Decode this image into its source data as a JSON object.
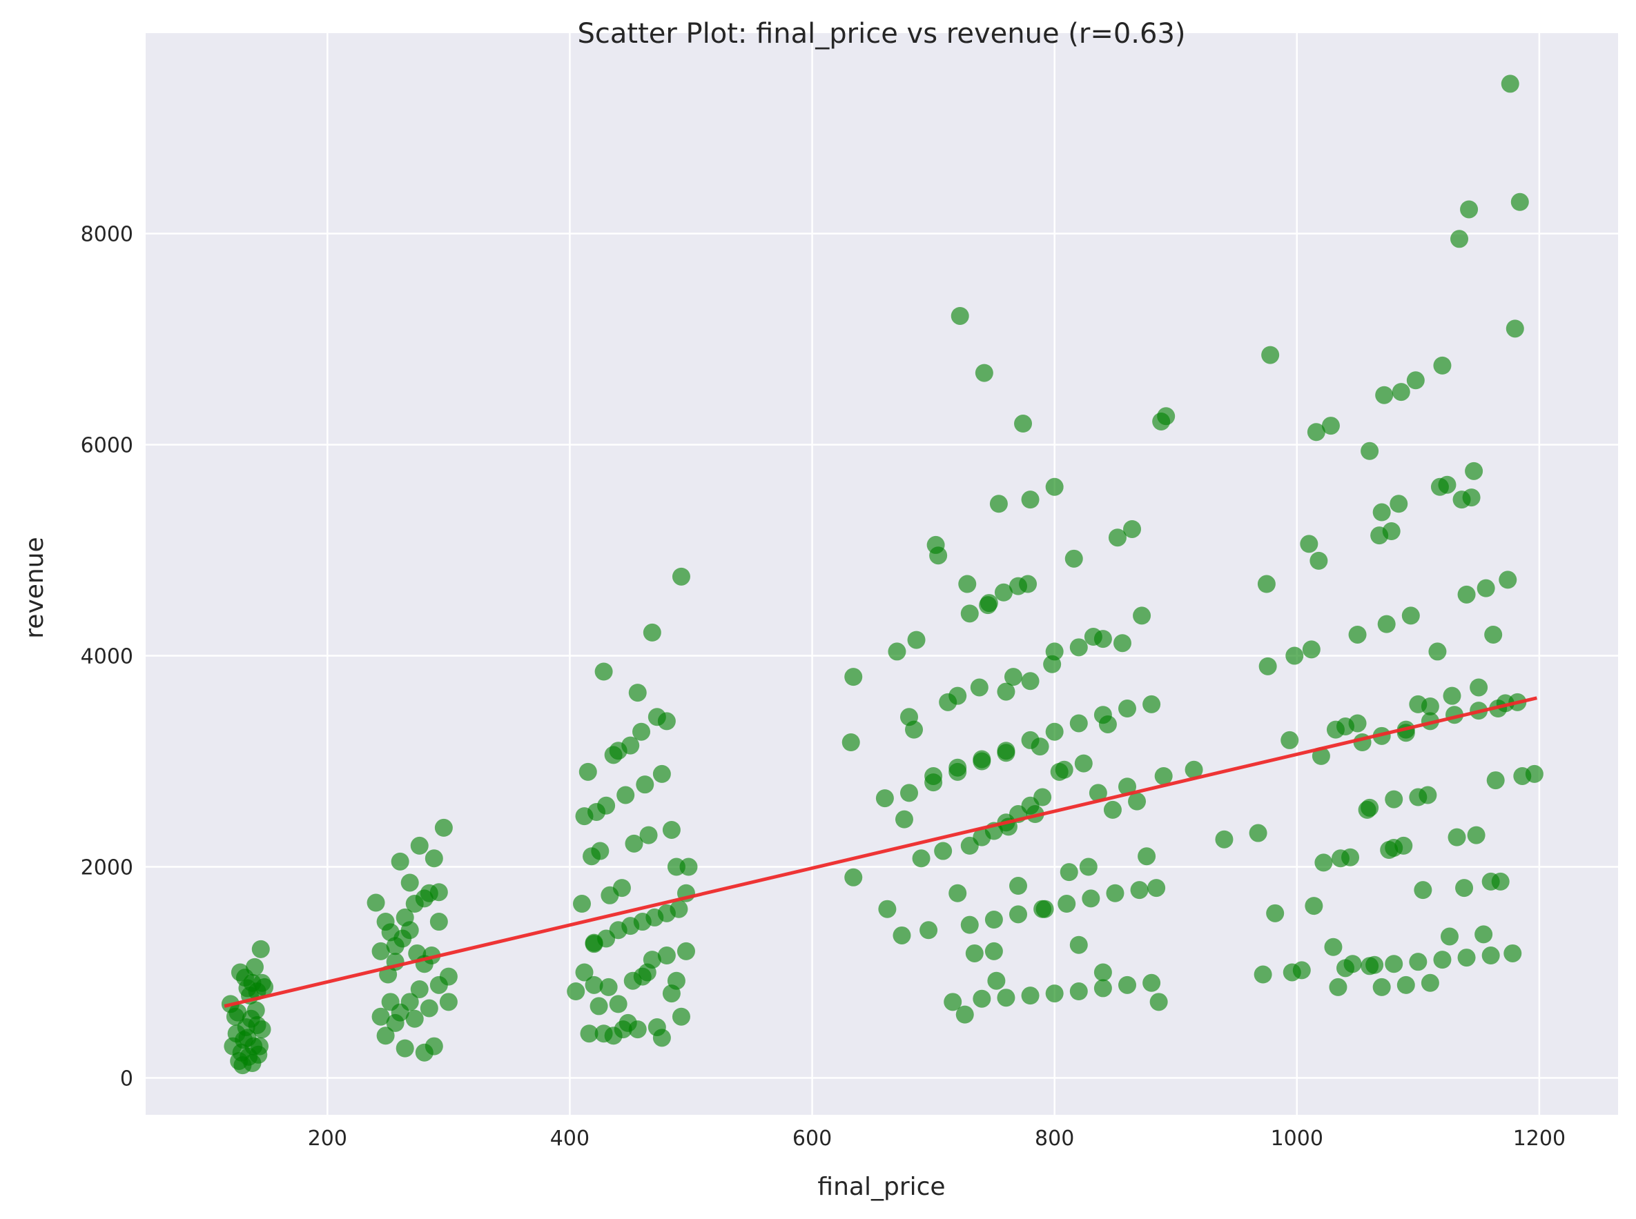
{
  "chart_data": {
    "type": "scatter",
    "title": "Scatter Plot: final_price vs revenue (r=0.63)",
    "xlabel": "final_price",
    "ylabel": "revenue",
    "xlim": [
      50,
      1265
    ],
    "ylim": [
      -350,
      9900
    ],
    "xticks": [
      200,
      400,
      600,
      800,
      1000,
      1200
    ],
    "yticks": [
      0,
      2000,
      4000,
      6000,
      8000
    ],
    "grid": true,
    "point_color": "#008000",
    "trend_color": "#ee2a2a",
    "background_color": "#eaeaf2",
    "trend_line": {
      "x": [
        115,
        1198
      ],
      "y": [
        680,
        3600
      ]
    },
    "points": [
      [
        120,
        700
      ],
      [
        124,
        580
      ],
      [
        128,
        1000
      ],
      [
        132,
        950
      ],
      [
        134,
        850
      ],
      [
        136,
        780
      ],
      [
        138,
        900
      ],
      [
        140,
        1050
      ],
      [
        142,
        820
      ],
      [
        145,
        1220
      ],
      [
        146,
        900
      ],
      [
        148,
        860
      ],
      [
        122,
        300
      ],
      [
        125,
        420
      ],
      [
        127,
        160
      ],
      [
        129,
        240
      ],
      [
        131,
        360
      ],
      [
        133,
        480
      ],
      [
        135,
        200
      ],
      [
        137,
        560
      ],
      [
        139,
        300
      ],
      [
        141,
        640
      ],
      [
        143,
        220
      ],
      [
        146,
        460
      ],
      [
        126,
        620
      ],
      [
        130,
        120
      ],
      [
        134,
        380
      ],
      [
        138,
        140
      ],
      [
        142,
        500
      ],
      [
        144,
        300
      ],
      [
        240,
        1660
      ],
      [
        244,
        1200
      ],
      [
        248,
        1480
      ],
      [
        252,
        1380
      ],
      [
        256,
        1250
      ],
      [
        260,
        2050
      ],
      [
        264,
        1520
      ],
      [
        268,
        1850
      ],
      [
        272,
        1650
      ],
      [
        276,
        2200
      ],
      [
        280,
        1700
      ],
      [
        284,
        1750
      ],
      [
        288,
        2080
      ],
      [
        292,
        1760
      ],
      [
        296,
        2370
      ],
      [
        300,
        960
      ],
      [
        244,
        580
      ],
      [
        248,
        400
      ],
      [
        252,
        720
      ],
      [
        256,
        520
      ],
      [
        260,
        620
      ],
      [
        264,
        280
      ],
      [
        268,
        720
      ],
      [
        272,
        560
      ],
      [
        276,
        840
      ],
      [
        280,
        240
      ],
      [
        284,
        660
      ],
      [
        288,
        300
      ],
      [
        292,
        880
      ],
      [
        300,
        720
      ],
      [
        250,
        980
      ],
      [
        256,
        1100
      ],
      [
        262,
        1320
      ],
      [
        268,
        1400
      ],
      [
        274,
        1180
      ],
      [
        280,
        1080
      ],
      [
        286,
        1160
      ],
      [
        292,
        1480
      ],
      [
        405,
        820
      ],
      [
        410,
        1650
      ],
      [
        412,
        2480
      ],
      [
        415,
        2900
      ],
      [
        418,
        2100
      ],
      [
        420,
        1280
      ],
      [
        422,
        2520
      ],
      [
        425,
        2150
      ],
      [
        428,
        3850
      ],
      [
        430,
        2580
      ],
      [
        433,
        1730
      ],
      [
        436,
        3060
      ],
      [
        440,
        3100
      ],
      [
        443,
        1800
      ],
      [
        446,
        2680
      ],
      [
        450,
        3150
      ],
      [
        453,
        2220
      ],
      [
        456,
        3650
      ],
      [
        459,
        3280
      ],
      [
        462,
        2780
      ],
      [
        465,
        2300
      ],
      [
        468,
        4220
      ],
      [
        472,
        3420
      ],
      [
        476,
        2880
      ],
      [
        480,
        3380
      ],
      [
        484,
        2350
      ],
      [
        488,
        2000
      ],
      [
        492,
        4750
      ],
      [
        496,
        1750
      ],
      [
        498,
        2000
      ],
      [
        412,
        1000
      ],
      [
        416,
        420
      ],
      [
        420,
        880
      ],
      [
        424,
        680
      ],
      [
        428,
        420
      ],
      [
        432,
        860
      ],
      [
        436,
        400
      ],
      [
        440,
        700
      ],
      [
        444,
        460
      ],
      [
        448,
        520
      ],
      [
        452,
        920
      ],
      [
        456,
        460
      ],
      [
        460,
        960
      ],
      [
        464,
        1000
      ],
      [
        468,
        1120
      ],
      [
        472,
        480
      ],
      [
        476,
        380
      ],
      [
        480,
        1160
      ],
      [
        484,
        800
      ],
      [
        488,
        920
      ],
      [
        492,
        580
      ],
      [
        496,
        1200
      ],
      [
        420,
        1270
      ],
      [
        430,
        1320
      ],
      [
        440,
        1400
      ],
      [
        450,
        1440
      ],
      [
        460,
        1480
      ],
      [
        470,
        1520
      ],
      [
        480,
        1560
      ],
      [
        490,
        1600
      ],
      [
        632,
        3180
      ],
      [
        634,
        3800
      ],
      [
        634,
        1900
      ],
      [
        660,
        2650
      ],
      [
        662,
        1600
      ],
      [
        670,
        4040
      ],
      [
        674,
        1350
      ],
      [
        676,
        2450
      ],
      [
        680,
        3420
      ],
      [
        684,
        3300
      ],
      [
        686,
        4150
      ],
      [
        690,
        2080
      ],
      [
        696,
        1400
      ],
      [
        702,
        5050
      ],
      [
        704,
        4950
      ],
      [
        708,
        2150
      ],
      [
        712,
        3560
      ],
      [
        716,
        720
      ],
      [
        720,
        1750
      ],
      [
        722,
        7220
      ],
      [
        726,
        600
      ],
      [
        728,
        4680
      ],
      [
        730,
        4400
      ],
      [
        734,
        1180
      ],
      [
        738,
        3700
      ],
      [
        742,
        6680
      ],
      [
        746,
        4500
      ],
      [
        750,
        1200
      ],
      [
        752,
        920
      ],
      [
        754,
        5440
      ],
      [
        758,
        4600
      ],
      [
        762,
        2380
      ],
      [
        766,
        3800
      ],
      [
        770,
        1820
      ],
      [
        774,
        6200
      ],
      [
        778,
        4680
      ],
      [
        780,
        5480
      ],
      [
        784,
        2500
      ],
      [
        788,
        3140
      ],
      [
        792,
        1600
      ],
      [
        798,
        3920
      ],
      [
        800,
        5600
      ],
      [
        804,
        2900
      ],
      [
        808,
        2920
      ],
      [
        812,
        1950
      ],
      [
        816,
        4920
      ],
      [
        820,
        1260
      ],
      [
        824,
        2980
      ],
      [
        828,
        2000
      ],
      [
        832,
        4180
      ],
      [
        836,
        2700
      ],
      [
        840,
        1000
      ],
      [
        844,
        3350
      ],
      [
        848,
        2540
      ],
      [
        852,
        5120
      ],
      [
        856,
        4120
      ],
      [
        860,
        2760
      ],
      [
        864,
        5200
      ],
      [
        868,
        2620
      ],
      [
        872,
        4380
      ],
      [
        876,
        2100
      ],
      [
        880,
        3540
      ],
      [
        884,
        1800
      ],
      [
        888,
        6220
      ],
      [
        890,
        2860
      ],
      [
        892,
        6270
      ],
      [
        730,
        2200
      ],
      [
        740,
        2280
      ],
      [
        750,
        2340
      ],
      [
        760,
        2420
      ],
      [
        770,
        2500
      ],
      [
        780,
        2580
      ],
      [
        790,
        2660
      ],
      [
        730,
        1450
      ],
      [
        750,
        1500
      ],
      [
        770,
        1550
      ],
      [
        790,
        1600
      ],
      [
        810,
        1650
      ],
      [
        830,
        1700
      ],
      [
        850,
        1750
      ],
      [
        870,
        1780
      ],
      [
        740,
        750
      ],
      [
        760,
        760
      ],
      [
        780,
        780
      ],
      [
        800,
        800
      ],
      [
        820,
        820
      ],
      [
        840,
        850
      ],
      [
        860,
        880
      ],
      [
        880,
        900
      ],
      [
        886,
        720
      ],
      [
        700,
        2860
      ],
      [
        720,
        2940
      ],
      [
        740,
        3020
      ],
      [
        760,
        3100
      ],
      [
        780,
        3200
      ],
      [
        800,
        3280
      ],
      [
        820,
        3360
      ],
      [
        840,
        3440
      ],
      [
        860,
        3500
      ],
      [
        680,
        2700
      ],
      [
        700,
        2800
      ],
      [
        720,
        2900
      ],
      [
        740,
        3000
      ],
      [
        760,
        3080
      ],
      [
        820,
        4080
      ],
      [
        840,
        4160
      ],
      [
        760,
        3660
      ],
      [
        780,
        3760
      ],
      [
        800,
        4040
      ],
      [
        720,
        3620
      ],
      [
        745,
        4480
      ],
      [
        770,
        4660
      ],
      [
        915,
        2920
      ],
      [
        940,
        2260
      ],
      [
        968,
        2320
      ],
      [
        972,
        980
      ],
      [
        975,
        4680
      ],
      [
        976,
        3900
      ],
      [
        978,
        6850
      ],
      [
        982,
        1560
      ],
      [
        994,
        3200
      ],
      [
        996,
        1000
      ],
      [
        998,
        4000
      ],
      [
        1004,
        1020
      ],
      [
        1010,
        5060
      ],
      [
        1012,
        4060
      ],
      [
        1014,
        1630
      ],
      [
        1016,
        6120
      ],
      [
        1018,
        4900
      ],
      [
        1020,
        3050
      ],
      [
        1022,
        2040
      ],
      [
        1028,
        6180
      ],
      [
        1030,
        1240
      ],
      [
        1032,
        3300
      ],
      [
        1034,
        860
      ],
      [
        1036,
        2080
      ],
      [
        1040,
        3330
      ],
      [
        1044,
        2090
      ],
      [
        1046,
        1080
      ],
      [
        1050,
        4200
      ],
      [
        1054,
        3180
      ],
      [
        1058,
        2540
      ],
      [
        1060,
        5940
      ],
      [
        1064,
        1070
      ],
      [
        1068,
        5140
      ],
      [
        1070,
        5360
      ],
      [
        1072,
        6470
      ],
      [
        1074,
        4300
      ],
      [
        1076,
        2160
      ],
      [
        1078,
        5180
      ],
      [
        1080,
        2180
      ],
      [
        1084,
        5440
      ],
      [
        1086,
        6500
      ],
      [
        1088,
        2200
      ],
      [
        1090,
        3270
      ],
      [
        1094,
        4380
      ],
      [
        1098,
        6610
      ],
      [
        1100,
        3540
      ],
      [
        1104,
        1780
      ],
      [
        1108,
        2680
      ],
      [
        1110,
        3520
      ],
      [
        1116,
        4040
      ],
      [
        1118,
        5600
      ],
      [
        1120,
        6750
      ],
      [
        1124,
        5620
      ],
      [
        1126,
        1340
      ],
      [
        1128,
        3620
      ],
      [
        1132,
        2280
      ],
      [
        1134,
        7950
      ],
      [
        1136,
        5480
      ],
      [
        1138,
        1800
      ],
      [
        1140,
        4580
      ],
      [
        1142,
        8230
      ],
      [
        1144,
        5500
      ],
      [
        1146,
        5750
      ],
      [
        1148,
        2300
      ],
      [
        1150,
        3700
      ],
      [
        1154,
        1360
      ],
      [
        1156,
        4640
      ],
      [
        1160,
        1860
      ],
      [
        1162,
        4200
      ],
      [
        1164,
        2820
      ],
      [
        1166,
        3500
      ],
      [
        1168,
        1860
      ],
      [
        1172,
        3550
      ],
      [
        1174,
        4720
      ],
      [
        1176,
        9420
      ],
      [
        1178,
        1180
      ],
      [
        1180,
        7100
      ],
      [
        1182,
        3560
      ],
      [
        1184,
        8300
      ],
      [
        1186,
        2860
      ],
      [
        1196,
        2880
      ],
      [
        1100,
        1100
      ],
      [
        1120,
        1120
      ],
      [
        1140,
        1140
      ],
      [
        1160,
        1160
      ],
      [
        1080,
        1080
      ],
      [
        1060,
        1060
      ],
      [
        1040,
        1040
      ],
      [
        1110,
        900
      ],
      [
        1090,
        880
      ],
      [
        1070,
        860
      ],
      [
        1050,
        3360
      ],
      [
        1070,
        3240
      ],
      [
        1090,
        3300
      ],
      [
        1110,
        3380
      ],
      [
        1130,
        3440
      ],
      [
        1150,
        3480
      ],
      [
        1060,
        2560
      ],
      [
        1080,
        2640
      ],
      [
        1100,
        2660
      ]
    ]
  }
}
